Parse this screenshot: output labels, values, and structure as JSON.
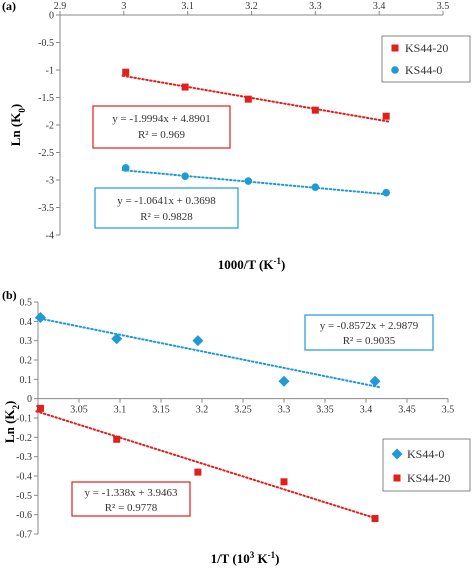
{
  "chart_data": [
    {
      "panel_label": "(a)",
      "type": "scatter",
      "xlabel": "1000/T (K",
      "xlabel_sup": "-1",
      "xlabel_end": ")",
      "ylabel": "Ln (K",
      "ylabel_sub": "0",
      "ylabel_end": ")",
      "xlim": [
        2.9,
        3.5
      ],
      "ylim": [
        -4,
        0
      ],
      "x_ticks": [
        "2.9",
        "3",
        "3.1",
        "3.2",
        "3.3",
        "3.4",
        "3.5"
      ],
      "y_ticks": [
        "0",
        "-0.5",
        "-1",
        "-1.5",
        "-2",
        "-2.5",
        "-3",
        "-3.5",
        "-4"
      ],
      "x_axis_position": "top",
      "legend_position": "top-right",
      "series": [
        {
          "name": "KS44-20",
          "color": "#e0201b",
          "marker": "square",
          "x": [
            3.003,
            3.096,
            3.195,
            3.3,
            3.411
          ],
          "y": [
            -1.04,
            -1.31,
            -1.53,
            -1.73,
            -1.84
          ],
          "fit": {
            "slope": -1.9994,
            "intercept": 4.8901
          },
          "equation": "y = -1.9994x + 4.8901",
          "r2": "R² = 0.969"
        },
        {
          "name": "KS44-0",
          "color": "#1e9ad6",
          "marker": "circle",
          "x": [
            3.003,
            3.096,
            3.195,
            3.3,
            3.411
          ],
          "y": [
            -2.78,
            -2.93,
            -3.02,
            -3.13,
            -3.23
          ],
          "fit": {
            "slope": -1.0641,
            "intercept": 0.3698
          },
          "equation": "y = -1.0641x + 0.3698",
          "r2": "R² = 0.9828"
        }
      ]
    },
    {
      "panel_label": "(b)",
      "type": "scatter",
      "xlabel": "1/T (10",
      "xlabel_sup": "3",
      "xlabel_end": " K",
      "xlabel_sup2": "-1",
      "xlabel_end2": ")",
      "ylabel": "Ln (K",
      "ylabel_sub": "2",
      "ylabel_end": ")",
      "xlim": [
        3.0,
        3.5
      ],
      "ylim": [
        -0.7,
        0.5
      ],
      "x_ticks": [
        "3",
        "3.05",
        "3.1",
        "3.15",
        "3.2",
        "3.25",
        "3.3",
        "3.35",
        "3.4",
        "3.45",
        "3.5"
      ],
      "y_ticks": [
        "0.5",
        "0.4",
        "0.3",
        "0.2",
        "0.1",
        "0",
        "-0.1",
        "-0.2",
        "-0.3",
        "-0.4",
        "-0.5",
        "-0.6",
        "-0.7"
      ],
      "legend_position": "bottom-right",
      "series": [
        {
          "name": "KS44-0",
          "color": "#1e9ad6",
          "marker": "diamond",
          "x": [
            3.003,
            3.096,
            3.195,
            3.3,
            3.411
          ],
          "y": [
            0.42,
            0.31,
            0.3,
            0.09,
            0.09
          ],
          "fit": {
            "slope": -0.8572,
            "intercept": 2.9879
          },
          "equation": "y = -0.8572x + 2.9879",
          "r2": "R² = 0.9035"
        },
        {
          "name": "KS44-20",
          "color": "#e0201b",
          "marker": "square",
          "x": [
            3.003,
            3.096,
            3.195,
            3.3,
            3.411
          ],
          "y": [
            -0.05,
            -0.21,
            -0.38,
            -0.43,
            -0.62
          ],
          "fit": {
            "slope": -1.338,
            "intercept": 3.9463
          },
          "equation": "y = -1.338x + 3.9463",
          "r2": "R² = 0.9778"
        }
      ]
    }
  ]
}
